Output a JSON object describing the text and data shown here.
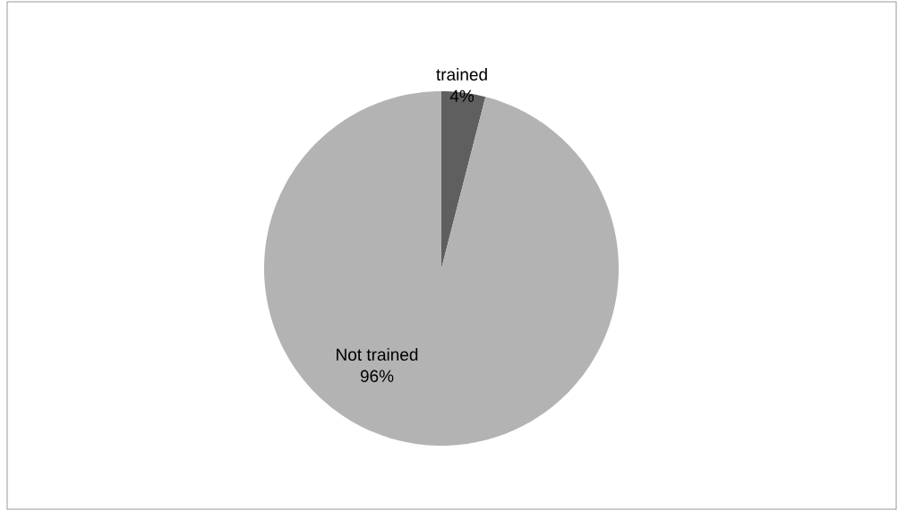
{
  "chart_data": {
    "type": "pie",
    "categories": [
      "trained",
      "Not trained"
    ],
    "values": [
      4,
      96
    ],
    "colors": [
      "#5f5f5f",
      "#b3b3b3"
    ],
    "value_labels": [
      "4%",
      "96%"
    ]
  }
}
